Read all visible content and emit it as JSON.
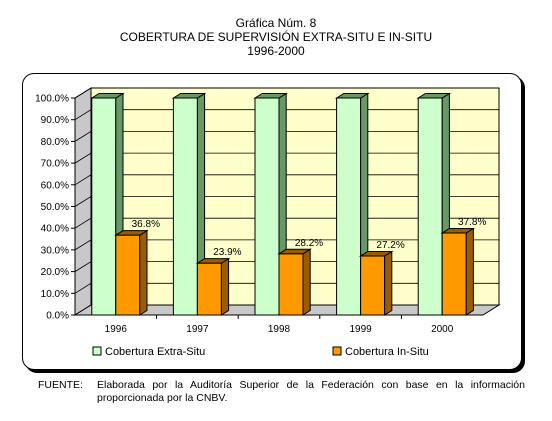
{
  "chart_data": {
    "type": "bar",
    "title_lines": [
      "Gráfica Núm. 8",
      "COBERTURA DE SUPERVISIÓN EXTRA-SITU E IN-SITU",
      "1996-2000"
    ],
    "categories": [
      "1996",
      "1997",
      "1998",
      "1999",
      "2000"
    ],
    "series": [
      {
        "name": "Cobertura Extra-Situ",
        "values": [
          100.0,
          100.0,
          100.0,
          100.0,
          100.0
        ],
        "color": "#ccffcc",
        "shade": "#669966",
        "labels": [
          "",
          "",
          "",
          "",
          ""
        ]
      },
      {
        "name": "Cobertura In-Situ",
        "values": [
          36.8,
          23.9,
          28.2,
          27.2,
          37.8
        ],
        "color": "#ff9900",
        "shade": "#995c00",
        "labels": [
          "36.8%",
          "23.9%",
          "28.2%",
          "27.2%",
          "37.8%"
        ]
      }
    ],
    "yticks": [
      "0.0%",
      "10.0%",
      "20.0%",
      "30.0%",
      "40.0%",
      "50.0%",
      "60.0%",
      "70.0%",
      "80.0%",
      "90.0%",
      "100.0%"
    ],
    "ylim": [
      0,
      100
    ],
    "grid": true,
    "plot_bg": "#ffffcc",
    "legend_position": "bottom"
  },
  "footnote": {
    "label": "FUENTE:",
    "text": "Elaborada por la Auditoría Superior de la Federación con base en la información proporcionada por la CNBV."
  }
}
